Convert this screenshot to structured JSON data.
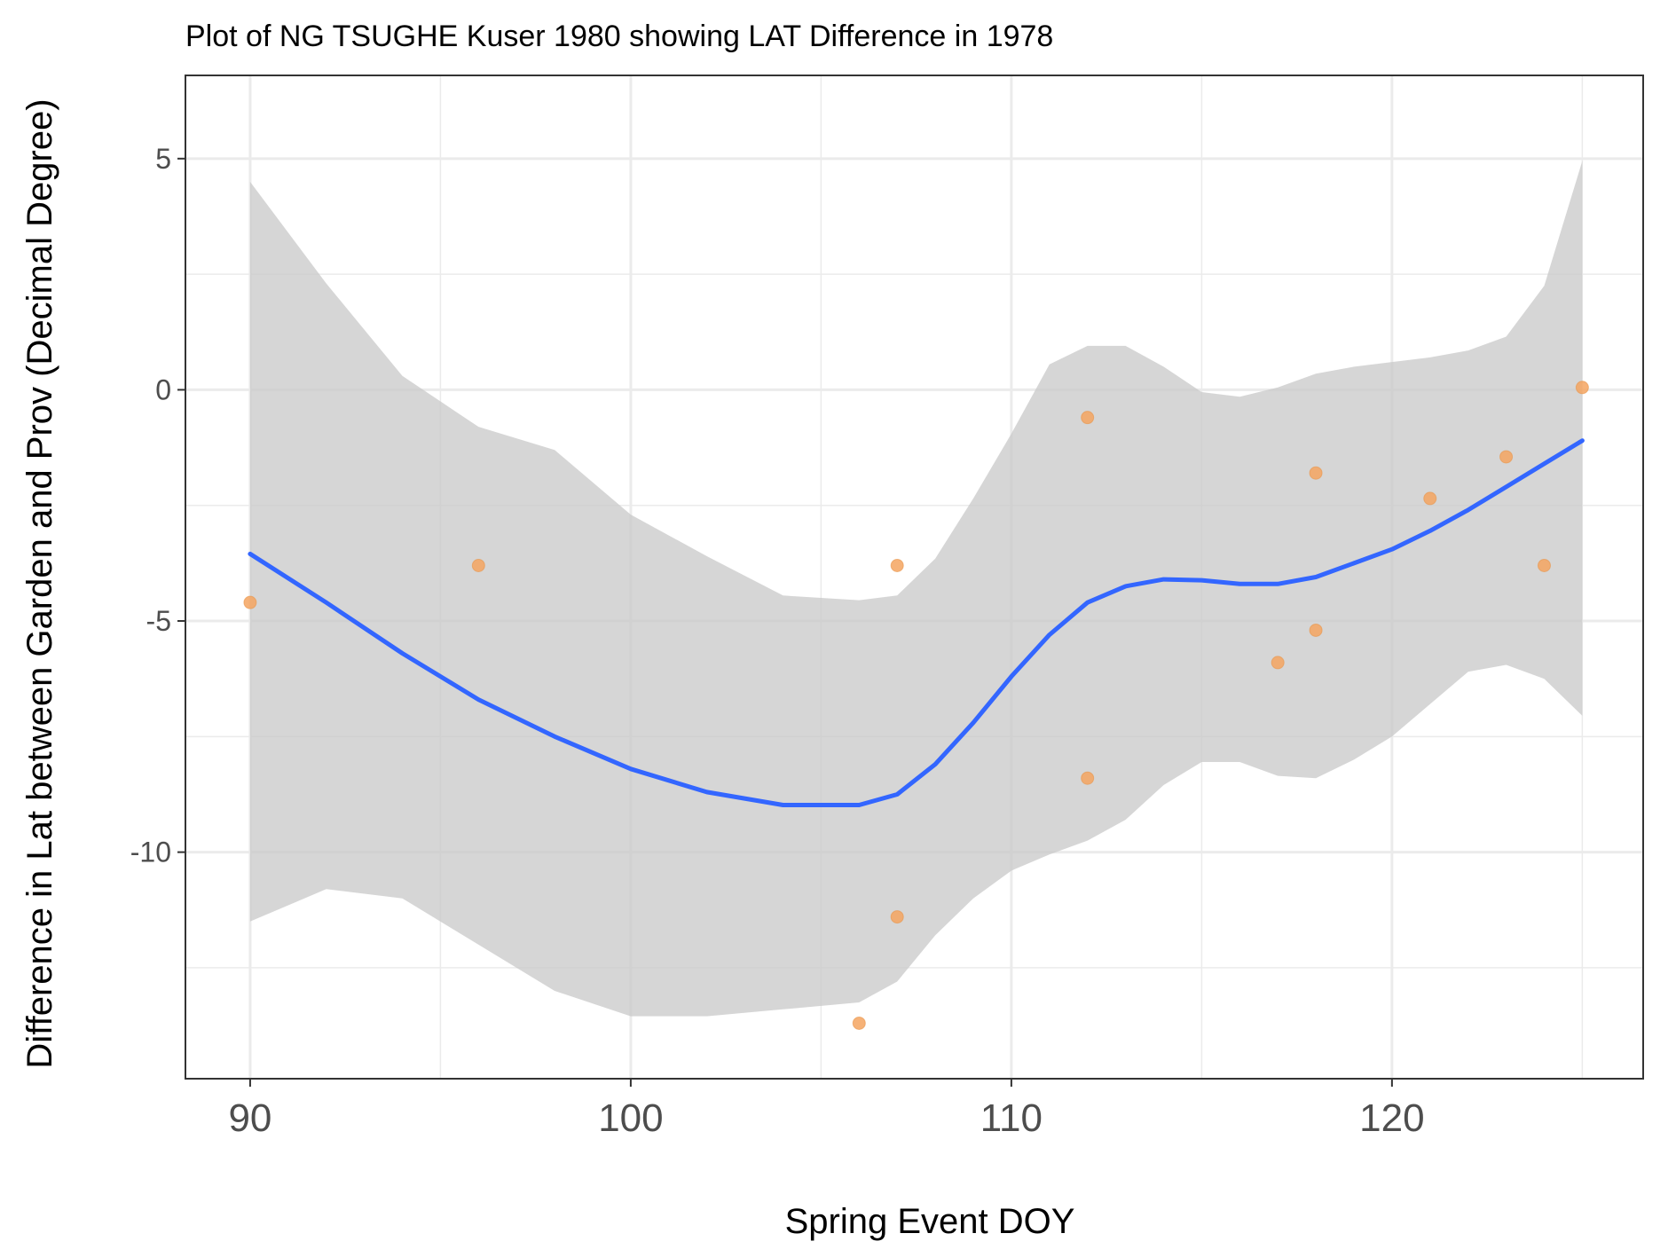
{
  "chart_data": {
    "type": "scatter",
    "title": "Plot of NG TSUGHE Kuser 1980 showing LAT Difference in 1978",
    "xlabel": "Spring Event DOY",
    "ylabel": "Difference in Lat between Garden and Prov (Decimal Degree)",
    "xlim": [
      88.3,
      126.6
    ],
    "ylim": [
      -14.9,
      6.8
    ],
    "x_ticks": [
      90,
      100,
      110,
      120
    ],
    "x_tick_labels": [
      "90",
      "100",
      "110",
      "120"
    ],
    "y_ticks": [
      5,
      0,
      -5,
      -10
    ],
    "y_tick_labels": [
      "5",
      "0",
      "-5",
      "-10"
    ],
    "x_minor": [
      95,
      105,
      115,
      125
    ],
    "y_minor": [
      2.5,
      -2.5,
      -7.5,
      -12.5
    ],
    "grid": true,
    "colors": {
      "points": "#f4a460",
      "points_stroke": "#e8944a",
      "smooth_line": "#3366ff",
      "ribbon": "#c8c8c8",
      "grid": "#ebebeb",
      "panel_border": "#333333"
    },
    "points": [
      {
        "x": 90,
        "y": -4.6
      },
      {
        "x": 96,
        "y": -3.8
      },
      {
        "x": 106,
        "y": -13.7
      },
      {
        "x": 107,
        "y": -3.8
      },
      {
        "x": 107,
        "y": -11.4
      },
      {
        "x": 112,
        "y": -0.6
      },
      {
        "x": 112,
        "y": -8.4
      },
      {
        "x": 117,
        "y": -5.9
      },
      {
        "x": 118,
        "y": -1.8
      },
      {
        "x": 118,
        "y": -5.2
      },
      {
        "x": 121,
        "y": -2.35
      },
      {
        "x": 123,
        "y": -1.45
      },
      {
        "x": 124,
        "y": -3.8
      },
      {
        "x": 125,
        "y": 0.05
      }
    ],
    "smooth": {
      "x": [
        90,
        92,
        94,
        96,
        98,
        100,
        102,
        104,
        106,
        107,
        108,
        109,
        110,
        111,
        112,
        113,
        114,
        115,
        116,
        117,
        118,
        119,
        120,
        121,
        122,
        123,
        124,
        125
      ],
      "y": [
        -3.55,
        -4.6,
        -5.7,
        -6.7,
        -7.5,
        -8.2,
        -8.7,
        -8.98,
        -8.98,
        -8.75,
        -8.1,
        -7.2,
        -6.2,
        -5.3,
        -4.6,
        -4.25,
        -4.1,
        -4.12,
        -4.2,
        -4.2,
        -4.05,
        -3.75,
        -3.45,
        -3.05,
        -2.6,
        -2.1,
        -1.6,
        -1.1
      ],
      "ymin": [
        -11.5,
        -10.8,
        -11.0,
        -12.0,
        -13.0,
        -13.55,
        -13.55,
        -13.4,
        -13.25,
        -12.8,
        -11.8,
        -11.0,
        -10.4,
        -10.05,
        -9.75,
        -9.3,
        -8.55,
        -8.05,
        -8.05,
        -8.35,
        -8.4,
        -8.0,
        -7.5,
        -6.8,
        -6.1,
        -5.95,
        -6.25,
        -7.05
      ],
      "ymax": [
        4.5,
        2.3,
        0.3,
        -0.8,
        -1.3,
        -2.7,
        -3.6,
        -4.45,
        -4.55,
        -4.45,
        -3.65,
        -2.35,
        -0.95,
        0.55,
        0.95,
        0.95,
        0.5,
        -0.05,
        -0.15,
        0.05,
        0.35,
        0.5,
        0.6,
        0.7,
        0.85,
        1.15,
        2.25,
        4.95
      ]
    }
  }
}
